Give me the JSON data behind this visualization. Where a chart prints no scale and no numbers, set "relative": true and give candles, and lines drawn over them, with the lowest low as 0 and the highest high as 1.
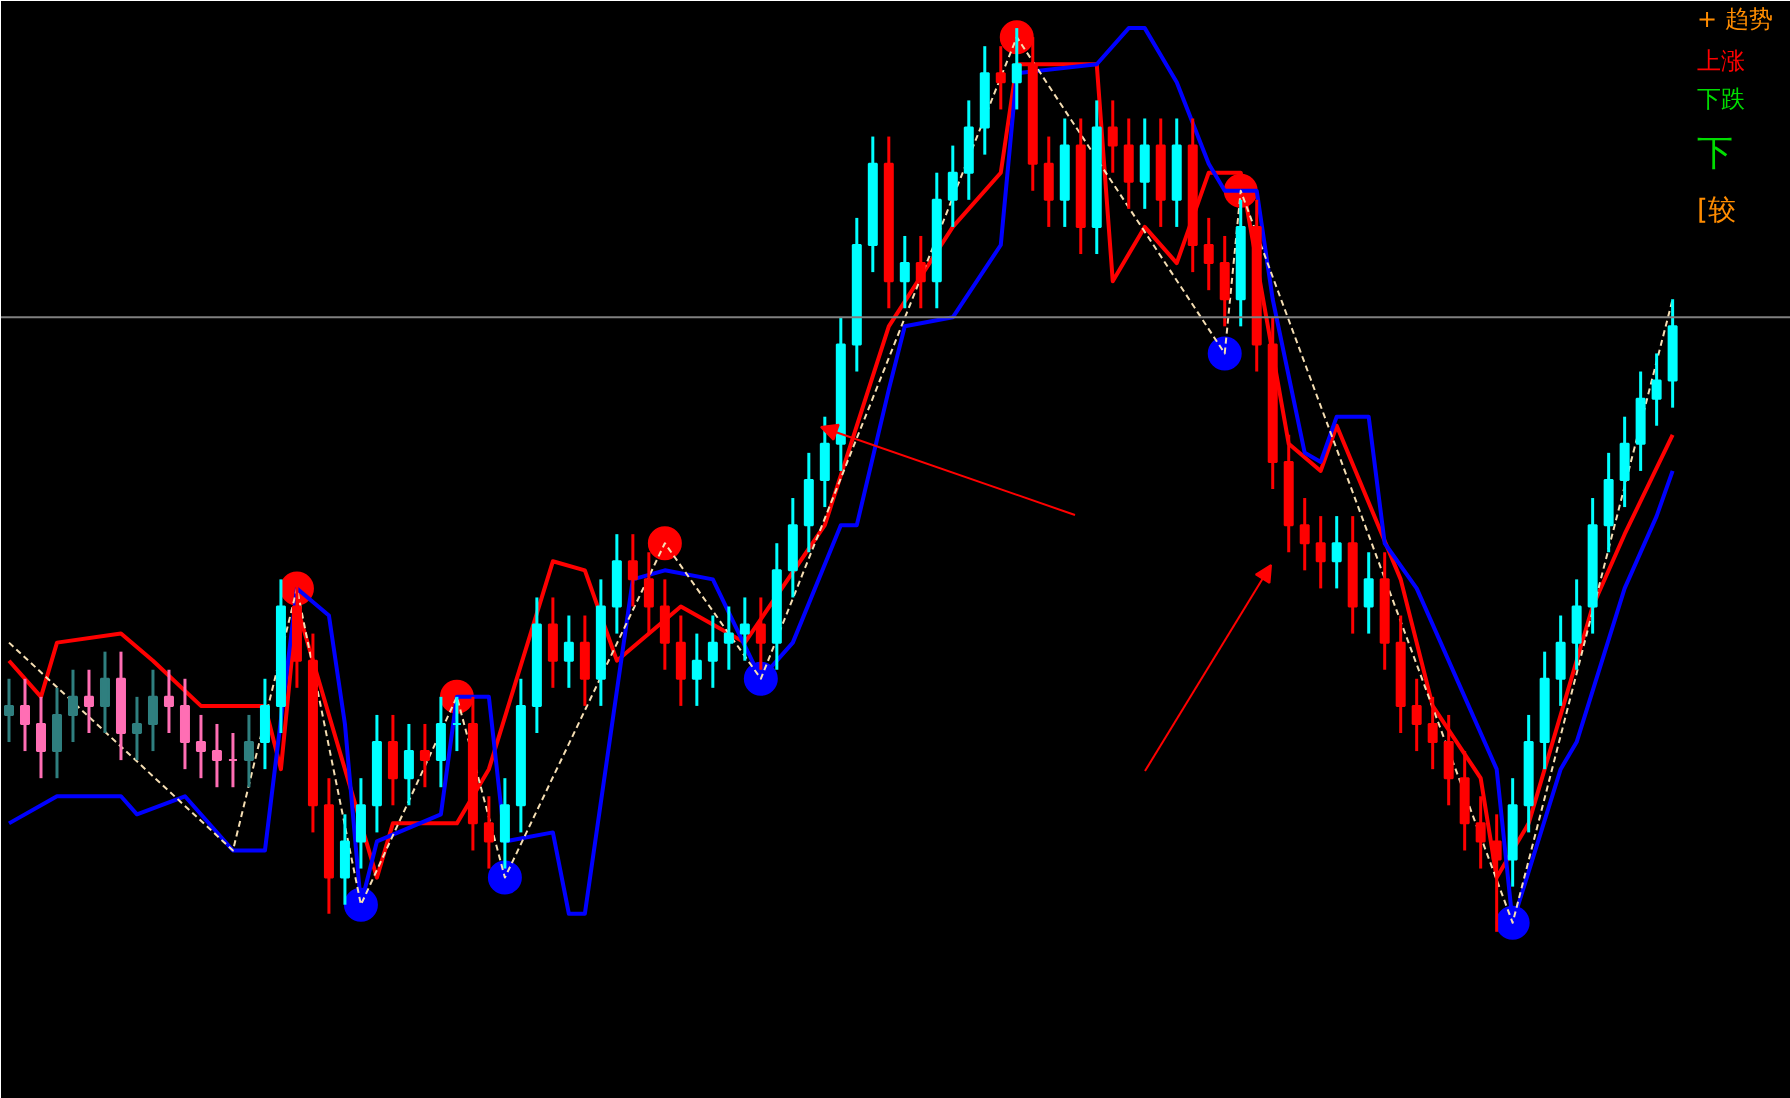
{
  "chart_data": {
    "type": "candlestick",
    "relative": true,
    "grid": false,
    "categories": [
      null,
      null,
      null,
      null,
      null,
      null,
      null,
      null,
      null,
      null,
      null,
      null,
      null,
      null,
      null,
      null,
      null,
      null,
      null,
      null,
      null,
      null,
      null,
      null,
      null,
      null,
      null,
      null,
      null,
      null,
      null,
      null,
      null,
      null,
      null,
      null,
      null,
      null,
      null,
      null,
      null,
      null,
      null,
      null,
      null,
      null,
      null,
      null,
      null,
      null,
      null,
      null,
      null,
      null,
      null,
      null,
      null,
      null,
      null,
      null,
      null,
      null,
      null,
      null,
      null,
      null,
      null,
      null,
      null,
      null,
      null,
      null,
      null,
      null,
      null,
      null,
      null,
      null,
      null,
      null,
      null,
      null,
      null,
      null,
      null,
      null,
      null,
      null,
      null,
      null,
      null,
      null,
      null,
      null,
      null,
      null,
      null,
      null,
      null,
      null,
      null,
      null,
      null,
      null,
      null
    ],
    "ohlc": [
      [
        0.24,
        0.28,
        0.21,
        0.25
      ],
      [
        0.25,
        0.28,
        0.2,
        0.23
      ],
      [
        0.23,
        0.26,
        0.17,
        0.2
      ],
      [
        0.2,
        0.27,
        0.17,
        0.24
      ],
      [
        0.24,
        0.29,
        0.21,
        0.26
      ],
      [
        0.26,
        0.29,
        0.22,
        0.25
      ],
      [
        0.25,
        0.31,
        0.22,
        0.28
      ],
      [
        0.28,
        0.31,
        0.19,
        0.22
      ],
      [
        0.22,
        0.26,
        0.19,
        0.23
      ],
      [
        0.23,
        0.29,
        0.2,
        0.26
      ],
      [
        0.26,
        0.29,
        0.22,
        0.25
      ],
      [
        0.25,
        0.28,
        0.18,
        0.21
      ],
      [
        0.21,
        0.24,
        0.17,
        0.2
      ],
      [
        0.2,
        0.23,
        0.16,
        0.19
      ],
      [
        0.19,
        0.22,
        0.16,
        0.19
      ],
      [
        0.19,
        0.24,
        0.16,
        0.21
      ],
      [
        0.21,
        0.28,
        0.18,
        0.25
      ],
      [
        0.25,
        0.39,
        0.22,
        0.36
      ],
      [
        0.36,
        0.39,
        0.27,
        0.3
      ],
      [
        0.3,
        0.33,
        0.11,
        0.14
      ],
      [
        0.14,
        0.17,
        0.02,
        0.06
      ],
      [
        0.06,
        0.13,
        0.03,
        0.1
      ],
      [
        0.1,
        0.17,
        0.07,
        0.14
      ],
      [
        0.14,
        0.24,
        0.11,
        0.21
      ],
      [
        0.21,
        0.24,
        0.14,
        0.17
      ],
      [
        0.17,
        0.23,
        0.14,
        0.2
      ],
      [
        0.2,
        0.23,
        0.16,
        0.19
      ],
      [
        0.19,
        0.26,
        0.16,
        0.23
      ],
      [
        0.23,
        0.26,
        0.2,
        0.23
      ],
      [
        0.23,
        0.26,
        0.09,
        0.12
      ],
      [
        0.12,
        0.15,
        0.07,
        0.1
      ],
      [
        0.1,
        0.17,
        0.07,
        0.14
      ],
      [
        0.14,
        0.28,
        0.11,
        0.25
      ],
      [
        0.25,
        0.37,
        0.22,
        0.34
      ],
      [
        0.34,
        0.37,
        0.27,
        0.3
      ],
      [
        0.3,
        0.35,
        0.27,
        0.32
      ],
      [
        0.32,
        0.35,
        0.25,
        0.28
      ],
      [
        0.28,
        0.39,
        0.25,
        0.36
      ],
      [
        0.36,
        0.44,
        0.33,
        0.41
      ],
      [
        0.41,
        0.44,
        0.36,
        0.39
      ],
      [
        0.39,
        0.42,
        0.33,
        0.36
      ],
      [
        0.36,
        0.39,
        0.29,
        0.32
      ],
      [
        0.32,
        0.35,
        0.25,
        0.28
      ],
      [
        0.28,
        0.33,
        0.25,
        0.3
      ],
      [
        0.3,
        0.35,
        0.27,
        0.32
      ],
      [
        0.32,
        0.36,
        0.29,
        0.33
      ],
      [
        0.33,
        0.37,
        0.3,
        0.34
      ],
      [
        0.34,
        0.37,
        0.29,
        0.32
      ],
      [
        0.32,
        0.43,
        0.29,
        0.4
      ],
      [
        0.4,
        0.48,
        0.37,
        0.45
      ],
      [
        0.45,
        0.53,
        0.42,
        0.5
      ],
      [
        0.5,
        0.57,
        0.47,
        0.54
      ],
      [
        0.54,
        0.68,
        0.51,
        0.65
      ],
      [
        0.65,
        0.79,
        0.62,
        0.76
      ],
      [
        0.76,
        0.88,
        0.73,
        0.85
      ],
      [
        0.85,
        0.88,
        0.69,
        0.72
      ],
      [
        0.72,
        0.77,
        0.69,
        0.74
      ],
      [
        0.74,
        0.77,
        0.69,
        0.72
      ],
      [
        0.72,
        0.84,
        0.69,
        0.81
      ],
      [
        0.81,
        0.87,
        0.78,
        0.84
      ],
      [
        0.84,
        0.92,
        0.81,
        0.89
      ],
      [
        0.89,
        0.98,
        0.86,
        0.95
      ],
      [
        0.95,
        0.98,
        0.91,
        0.94
      ],
      [
        0.94,
        1.0,
        0.91,
        0.96
      ],
      [
        0.96,
        0.99,
        0.82,
        0.85
      ],
      [
        0.85,
        0.88,
        0.78,
        0.81
      ],
      [
        0.81,
        0.9,
        0.78,
        0.87
      ],
      [
        0.87,
        0.9,
        0.75,
        0.78
      ],
      [
        0.78,
        0.92,
        0.75,
        0.89
      ],
      [
        0.89,
        0.92,
        0.84,
        0.87
      ],
      [
        0.87,
        0.9,
        0.8,
        0.83
      ],
      [
        0.83,
        0.9,
        0.8,
        0.87
      ],
      [
        0.87,
        0.9,
        0.78,
        0.81
      ],
      [
        0.81,
        0.9,
        0.78,
        0.87
      ],
      [
        0.87,
        0.9,
        0.73,
        0.76
      ],
      [
        0.76,
        0.79,
        0.71,
        0.74
      ],
      [
        0.74,
        0.77,
        0.67,
        0.7
      ],
      [
        0.7,
        0.81,
        0.67,
        0.78
      ],
      [
        0.78,
        0.81,
        0.62,
        0.65
      ],
      [
        0.65,
        0.68,
        0.49,
        0.52
      ],
      [
        0.52,
        0.55,
        0.42,
        0.45
      ],
      [
        0.45,
        0.48,
        0.4,
        0.43
      ],
      [
        0.43,
        0.46,
        0.38,
        0.41
      ],
      [
        0.41,
        0.46,
        0.38,
        0.43
      ],
      [
        0.43,
        0.46,
        0.33,
        0.36
      ],
      [
        0.36,
        0.42,
        0.33,
        0.39
      ],
      [
        0.39,
        0.42,
        0.29,
        0.32
      ],
      [
        0.32,
        0.35,
        0.22,
        0.25
      ],
      [
        0.25,
        0.28,
        0.2,
        0.23
      ],
      [
        0.23,
        0.26,
        0.18,
        0.21
      ],
      [
        0.21,
        0.24,
        0.14,
        0.17
      ],
      [
        0.17,
        0.2,
        0.09,
        0.12
      ],
      [
        0.12,
        0.15,
        0.07,
        0.1
      ],
      [
        0.1,
        0.13,
        0.0,
        0.08
      ],
      [
        0.08,
        0.17,
        0.05,
        0.14
      ],
      [
        0.14,
        0.24,
        0.11,
        0.21
      ],
      [
        0.21,
        0.31,
        0.18,
        0.28
      ],
      [
        0.28,
        0.35,
        0.25,
        0.32
      ],
      [
        0.32,
        0.39,
        0.29,
        0.36
      ],
      [
        0.36,
        0.48,
        0.33,
        0.45
      ],
      [
        0.45,
        0.53,
        0.42,
        0.5
      ],
      [
        0.5,
        0.57,
        0.47,
        0.54
      ],
      [
        0.54,
        0.62,
        0.51,
        0.59
      ],
      [
        0.59,
        0.64,
        0.56,
        0.61
      ],
      [
        0.61,
        0.7,
        0.58,
        0.67
      ]
    ],
    "colors": [
      "#2f7f7f",
      "#ff6eb4",
      "#ff6eb4",
      "#2f7f7f",
      "#2f7f7f",
      "#ff6eb4",
      "#2f7f7f",
      "#ff6eb4",
      "#2f7f7f",
      "#2f7f7f",
      "#ff6eb4",
      "#ff6eb4",
      "#ff6eb4",
      "#ff6eb4",
      "#ff6eb4",
      "#2f7f7f",
      "#00ffff",
      "#00ffff",
      "#ff0000",
      "#ff0000",
      "#ff0000",
      "#00ffff",
      "#00ffff",
      "#00ffff",
      "#ff0000",
      "#00ffff",
      "#ff0000",
      "#00ffff",
      "#00ffff",
      "#ff0000",
      "#ff0000",
      "#00ffff",
      "#00ffff",
      "#00ffff",
      "#ff0000",
      "#00ffff",
      "#ff0000",
      "#00ffff",
      "#00ffff",
      "#ff0000",
      "#ff0000",
      "#ff0000",
      "#ff0000",
      "#00ffff",
      "#00ffff",
      "#00ffff",
      "#00ffff",
      "#ff0000",
      "#00ffff",
      "#00ffff",
      "#00ffff",
      "#00ffff",
      "#00ffff",
      "#00ffff",
      "#00ffff",
      "#ff0000",
      "#00ffff",
      "#ff0000",
      "#00ffff",
      "#00ffff",
      "#00ffff",
      "#00ffff",
      "#ff0000",
      "#00ffff",
      "#ff0000",
      "#ff0000",
      "#00ffff",
      "#ff0000",
      "#00ffff",
      "#ff0000",
      "#ff0000",
      "#00ffff",
      "#ff0000",
      "#00ffff",
      "#ff0000",
      "#ff0000",
      "#ff0000",
      "#00ffff",
      "#ff0000",
      "#ff0000",
      "#ff0000",
      "#ff0000",
      "#ff0000",
      "#00ffff",
      "#ff0000",
      "#00ffff",
      "#ff0000",
      "#ff0000",
      "#ff0000",
      "#ff0000",
      "#ff0000",
      "#ff0000",
      "#ff0000",
      "#ff0000",
      "#00ffff",
      "#00ffff",
      "#00ffff",
      "#00ffff",
      "#00ffff",
      "#00ffff",
      "#00ffff",
      "#00ffff",
      "#00ffff",
      "#00ffff",
      "#00ffff"
    ],
    "series": [
      {
        "type": "line",
        "color": "#ff0000",
        "line_style": "solid",
        "values": [
          0.3,
          null,
          0.26,
          0.32,
          null,
          null,
          null,
          0.33,
          null,
          0.3,
          null,
          null,
          0.25,
          null,
          null,
          null,
          0.25,
          0.18,
          0.36,
          null,
          null,
          null,
          null,
          0.06,
          0.12,
          null,
          null,
          null,
          0.12,
          null,
          0.18,
          null,
          null,
          null,
          0.41,
          null,
          0.4,
          null,
          0.3,
          null,
          null,
          null,
          0.36,
          null,
          0.34,
          null,
          0.32,
          null,
          null,
          null,
          null,
          0.45,
          null,
          null,
          null,
          0.67,
          null,
          null,
          null,
          0.78,
          null,
          null,
          0.84,
          0.96,
          null,
          null,
          null,
          null,
          0.96,
          0.72,
          null,
          0.78,
          null,
          0.74,
          null,
          0.84,
          null,
          0.84,
          null,
          null,
          0.54,
          null,
          0.51,
          0.56,
          null,
          null,
          null,
          0.39,
          null,
          0.25,
          null,
          null,
          0.17,
          0.06,
          null,
          0.12,
          null,
          null,
          null,
          0.36,
          null,
          0.44,
          null,
          null,
          0.55
        ]
      },
      {
        "type": "line",
        "color": "#0000ff",
        "line_style": "solid",
        "values": [
          0.12,
          null,
          null,
          0.15,
          null,
          null,
          null,
          0.15,
          0.13,
          null,
          null,
          0.15,
          null,
          null,
          0.09,
          null,
          0.09,
          null,
          0.38,
          null,
          0.35,
          0.23,
          0.03,
          0.1,
          null,
          null,
          null,
          0.13,
          0.26,
          null,
          0.26,
          0.1,
          null,
          null,
          0.11,
          0.02,
          0.02,
          null,
          null,
          0.39,
          null,
          0.4,
          null,
          null,
          0.39,
          null,
          null,
          0.28,
          null,
          0.32,
          null,
          null,
          0.45,
          0.45,
          null,
          0.6,
          0.67,
          null,
          null,
          0.68,
          null,
          null,
          0.76,
          0.95,
          null,
          null,
          null,
          null,
          0.96,
          null,
          1.0,
          1.0,
          null,
          0.94,
          null,
          0.85,
          0.82,
          null,
          0.82,
          0.7,
          null,
          0.53,
          0.52,
          0.57,
          null,
          0.57,
          0.43,
          null,
          0.38,
          null,
          null,
          0.26,
          null,
          0.18,
          0.01,
          null,
          null,
          0.18,
          0.21,
          null,
          null,
          0.38,
          null,
          0.46,
          0.51
        ]
      },
      {
        "type": "line",
        "color": "#f5deb3",
        "line_style": "dashed",
        "values": [
          0.32,
          null,
          null,
          null,
          null,
          null,
          null,
          null,
          null,
          null,
          null,
          null,
          null,
          null,
          0.09,
          null,
          null,
          null,
          0.38,
          null,
          null,
          null,
          0.03,
          null,
          null,
          null,
          null,
          null,
          0.26,
          null,
          null,
          0.06,
          null,
          null,
          null,
          null,
          null,
          null,
          null,
          null,
          null,
          0.43,
          null,
          null,
          null,
          null,
          null,
          0.28,
          null,
          null,
          null,
          null,
          null,
          null,
          null,
          null,
          null,
          null,
          null,
          null,
          null,
          null,
          null,
          0.99,
          null,
          null,
          null,
          null,
          null,
          null,
          null,
          null,
          null,
          null,
          null,
          null,
          0.64,
          0.82,
          null,
          null,
          null,
          null,
          null,
          null,
          null,
          null,
          null,
          null,
          null,
          null,
          null,
          null,
          null,
          null,
          0.01,
          null,
          null,
          null,
          null,
          null,
          null,
          null,
          null,
          null,
          0.7
        ]
      },
      {
        "type": "scatter",
        "color": "#ff0000",
        "marker": "circle",
        "values": [
          null,
          null,
          null,
          null,
          null,
          null,
          null,
          null,
          null,
          null,
          null,
          null,
          null,
          null,
          null,
          null,
          null,
          null,
          0.38,
          null,
          null,
          null,
          null,
          null,
          null,
          null,
          null,
          null,
          0.26,
          null,
          null,
          null,
          null,
          null,
          null,
          null,
          null,
          null,
          null,
          null,
          null,
          0.43,
          null,
          null,
          null,
          null,
          null,
          null,
          null,
          null,
          null,
          null,
          null,
          null,
          null,
          null,
          null,
          null,
          null,
          null,
          null,
          null,
          null,
          0.99,
          null,
          null,
          null,
          null,
          null,
          null,
          null,
          null,
          null,
          null,
          null,
          null,
          null,
          0.82,
          null,
          null,
          null,
          null,
          null,
          null,
          null,
          null,
          null,
          null,
          null,
          null,
          null,
          null,
          null,
          null,
          null,
          null,
          null,
          null,
          null,
          null,
          null,
          null,
          null,
          null,
          null
        ]
      },
      {
        "type": "scatter",
        "color": "#0000ff",
        "marker": "circle",
        "values": [
          null,
          null,
          null,
          null,
          null,
          null,
          null,
          null,
          null,
          null,
          null,
          null,
          null,
          null,
          null,
          null,
          null,
          null,
          null,
          null,
          null,
          null,
          0.03,
          null,
          null,
          null,
          null,
          null,
          null,
          null,
          null,
          0.06,
          null,
          null,
          null,
          null,
          null,
          null,
          null,
          null,
          null,
          null,
          null,
          null,
          null,
          null,
          null,
          0.28,
          null,
          null,
          null,
          null,
          null,
          null,
          null,
          null,
          null,
          null,
          null,
          null,
          null,
          null,
          null,
          null,
          null,
          null,
          null,
          null,
          null,
          null,
          null,
          null,
          null,
          null,
          null,
          null,
          0.64,
          null,
          null,
          null,
          null,
          null,
          null,
          null,
          null,
          null,
          null,
          null,
          null,
          null,
          null,
          null,
          null,
          null,
          0.01,
          null,
          null,
          null,
          null,
          null,
          null,
          null,
          null,
          null,
          null
        ]
      }
    ],
    "ref_lines": [
      {
        "axis": "y",
        "value": 0.68,
        "color": "#808080"
      }
    ],
    "annotations": [
      "+ 趋势",
      "上涨",
      "下跌",
      "下",
      "[较"
    ]
  }
}
